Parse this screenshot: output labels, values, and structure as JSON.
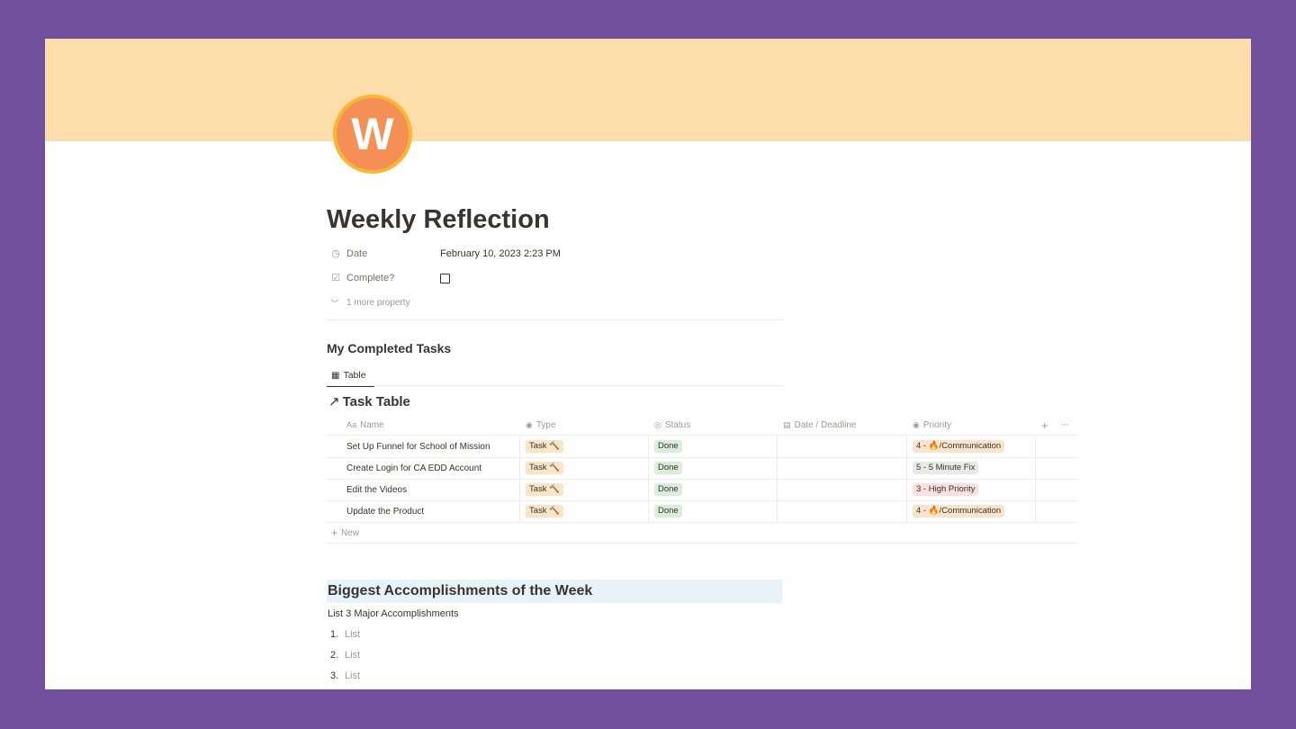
{
  "page": {
    "icon_letter": "W",
    "title": "Weekly Reflection",
    "colors": {
      "cover": "#fddeab",
      "icon_bg": "#f58f55",
      "icon_border": "#f7b731",
      "background": "#704f9f"
    }
  },
  "properties": [
    {
      "icon": "clock-icon",
      "name": "Date",
      "value": "February 10, 2023 2:23 PM"
    },
    {
      "icon": "checkbox-icon",
      "name": "Complete?",
      "value": "",
      "checked": false
    }
  ],
  "more_properties": "1 more property",
  "tasks_section": {
    "heading": "My Completed Tasks",
    "view_tab": "Table",
    "table_title": "Task Table"
  },
  "table": {
    "columns": [
      {
        "icon": "Aa",
        "label": "Name"
      },
      {
        "icon": "select-icon",
        "label": "Type"
      },
      {
        "icon": "status-icon",
        "label": "Status"
      },
      {
        "icon": "calendar-icon",
        "label": "Date / Deadline"
      },
      {
        "icon": "select-icon",
        "label": "Priority"
      }
    ],
    "rows": [
      {
        "name": "Set Up Funnel for School of Mission",
        "type": "Task 🔨",
        "status": "Done",
        "date": "",
        "priority": "4 - 🔥/Communication",
        "priority_color": "orange"
      },
      {
        "name": "Create Login for CA EDD Account",
        "type": "Task 🔨",
        "status": "Done",
        "date": "",
        "priority": "5 - 5 Minute Fix",
        "priority_color": "gray"
      },
      {
        "name": "Edit the Videos",
        "type": "Task 🔨",
        "status": "Done",
        "date": "",
        "priority": "3 - High Priority",
        "priority_color": "red"
      },
      {
        "name": "Update the Product",
        "type": "Task 🔨",
        "status": "Done",
        "date": "",
        "priority": "4 - 🔥/Communication",
        "priority_color": "orange"
      }
    ],
    "new_label": "New"
  },
  "accomplishments": {
    "heading": "Biggest Accomplishments of the Week",
    "subtitle": "List 3 Major Accomplishments",
    "items": [
      {
        "num": "1.",
        "placeholder": "List"
      },
      {
        "num": "2.",
        "placeholder": "List"
      },
      {
        "num": "3.",
        "placeholder": "List"
      }
    ]
  }
}
